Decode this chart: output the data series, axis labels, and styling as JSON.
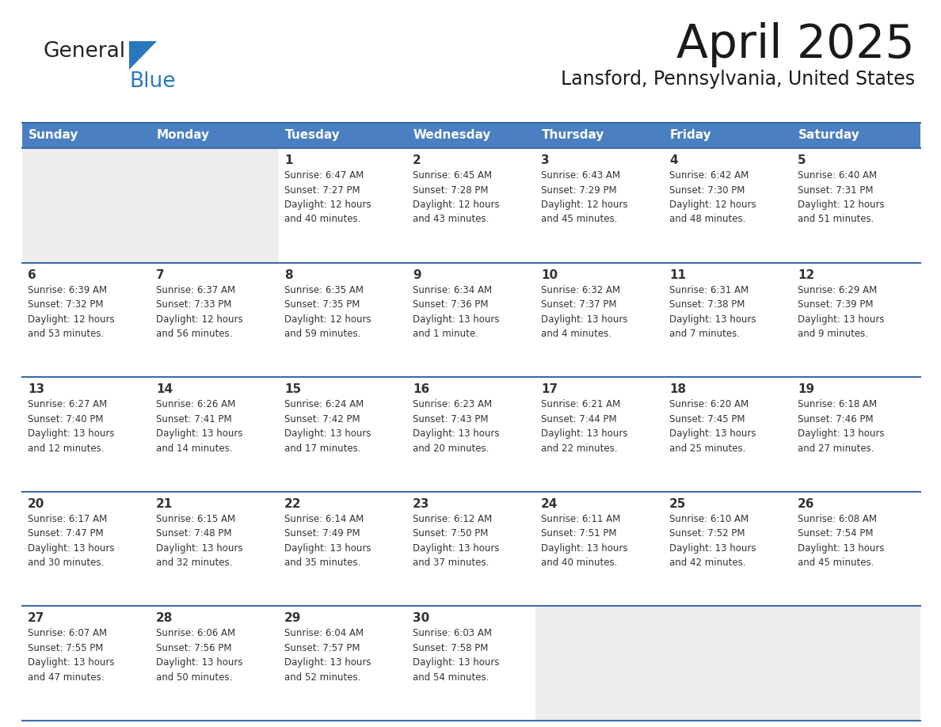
{
  "title": "April 2025",
  "subtitle": "Lansford, Pennsylvania, United States",
  "days_of_week": [
    "Sunday",
    "Monday",
    "Tuesday",
    "Wednesday",
    "Thursday",
    "Friday",
    "Saturday"
  ],
  "header_bg": "#4A7FC1",
  "header_text": "#FFFFFF",
  "cell_bg_light": "#EEEEEE",
  "cell_bg_white": "#FFFFFF",
  "border_color": "#3A6BAA",
  "text_color": "#333333",
  "title_color": "#1a1a1a",
  "logo_general_color": "#222222",
  "logo_blue_color": "#2878BE",
  "calendar_data": [
    [
      {
        "day": null,
        "info": ""
      },
      {
        "day": null,
        "info": ""
      },
      {
        "day": 1,
        "info": "Sunrise: 6:47 AM\nSunset: 7:27 PM\nDaylight: 12 hours\nand 40 minutes."
      },
      {
        "day": 2,
        "info": "Sunrise: 6:45 AM\nSunset: 7:28 PM\nDaylight: 12 hours\nand 43 minutes."
      },
      {
        "day": 3,
        "info": "Sunrise: 6:43 AM\nSunset: 7:29 PM\nDaylight: 12 hours\nand 45 minutes."
      },
      {
        "day": 4,
        "info": "Sunrise: 6:42 AM\nSunset: 7:30 PM\nDaylight: 12 hours\nand 48 minutes."
      },
      {
        "day": 5,
        "info": "Sunrise: 6:40 AM\nSunset: 7:31 PM\nDaylight: 12 hours\nand 51 minutes."
      }
    ],
    [
      {
        "day": 6,
        "info": "Sunrise: 6:39 AM\nSunset: 7:32 PM\nDaylight: 12 hours\nand 53 minutes."
      },
      {
        "day": 7,
        "info": "Sunrise: 6:37 AM\nSunset: 7:33 PM\nDaylight: 12 hours\nand 56 minutes."
      },
      {
        "day": 8,
        "info": "Sunrise: 6:35 AM\nSunset: 7:35 PM\nDaylight: 12 hours\nand 59 minutes."
      },
      {
        "day": 9,
        "info": "Sunrise: 6:34 AM\nSunset: 7:36 PM\nDaylight: 13 hours\nand 1 minute."
      },
      {
        "day": 10,
        "info": "Sunrise: 6:32 AM\nSunset: 7:37 PM\nDaylight: 13 hours\nand 4 minutes."
      },
      {
        "day": 11,
        "info": "Sunrise: 6:31 AM\nSunset: 7:38 PM\nDaylight: 13 hours\nand 7 minutes."
      },
      {
        "day": 12,
        "info": "Sunrise: 6:29 AM\nSunset: 7:39 PM\nDaylight: 13 hours\nand 9 minutes."
      }
    ],
    [
      {
        "day": 13,
        "info": "Sunrise: 6:27 AM\nSunset: 7:40 PM\nDaylight: 13 hours\nand 12 minutes."
      },
      {
        "day": 14,
        "info": "Sunrise: 6:26 AM\nSunset: 7:41 PM\nDaylight: 13 hours\nand 14 minutes."
      },
      {
        "day": 15,
        "info": "Sunrise: 6:24 AM\nSunset: 7:42 PM\nDaylight: 13 hours\nand 17 minutes."
      },
      {
        "day": 16,
        "info": "Sunrise: 6:23 AM\nSunset: 7:43 PM\nDaylight: 13 hours\nand 20 minutes."
      },
      {
        "day": 17,
        "info": "Sunrise: 6:21 AM\nSunset: 7:44 PM\nDaylight: 13 hours\nand 22 minutes."
      },
      {
        "day": 18,
        "info": "Sunrise: 6:20 AM\nSunset: 7:45 PM\nDaylight: 13 hours\nand 25 minutes."
      },
      {
        "day": 19,
        "info": "Sunrise: 6:18 AM\nSunset: 7:46 PM\nDaylight: 13 hours\nand 27 minutes."
      }
    ],
    [
      {
        "day": 20,
        "info": "Sunrise: 6:17 AM\nSunset: 7:47 PM\nDaylight: 13 hours\nand 30 minutes."
      },
      {
        "day": 21,
        "info": "Sunrise: 6:15 AM\nSunset: 7:48 PM\nDaylight: 13 hours\nand 32 minutes."
      },
      {
        "day": 22,
        "info": "Sunrise: 6:14 AM\nSunset: 7:49 PM\nDaylight: 13 hours\nand 35 minutes."
      },
      {
        "day": 23,
        "info": "Sunrise: 6:12 AM\nSunset: 7:50 PM\nDaylight: 13 hours\nand 37 minutes."
      },
      {
        "day": 24,
        "info": "Sunrise: 6:11 AM\nSunset: 7:51 PM\nDaylight: 13 hours\nand 40 minutes."
      },
      {
        "day": 25,
        "info": "Sunrise: 6:10 AM\nSunset: 7:52 PM\nDaylight: 13 hours\nand 42 minutes."
      },
      {
        "day": 26,
        "info": "Sunrise: 6:08 AM\nSunset: 7:54 PM\nDaylight: 13 hours\nand 45 minutes."
      }
    ],
    [
      {
        "day": 27,
        "info": "Sunrise: 6:07 AM\nSunset: 7:55 PM\nDaylight: 13 hours\nand 47 minutes."
      },
      {
        "day": 28,
        "info": "Sunrise: 6:06 AM\nSunset: 7:56 PM\nDaylight: 13 hours\nand 50 minutes."
      },
      {
        "day": 29,
        "info": "Sunrise: 6:04 AM\nSunset: 7:57 PM\nDaylight: 13 hours\nand 52 minutes."
      },
      {
        "day": 30,
        "info": "Sunrise: 6:03 AM\nSunset: 7:58 PM\nDaylight: 13 hours\nand 54 minutes."
      },
      {
        "day": null,
        "info": ""
      },
      {
        "day": null,
        "info": ""
      },
      {
        "day": null,
        "info": ""
      }
    ]
  ]
}
